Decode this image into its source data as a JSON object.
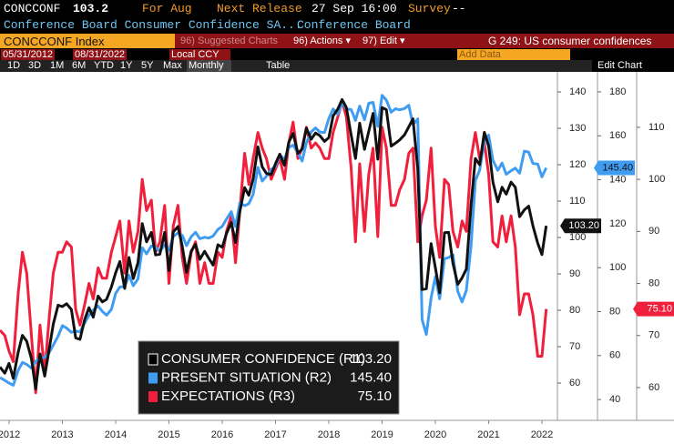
{
  "header": {
    "ticker": "CONCCONF",
    "last": "103.2",
    "period": "For Aug",
    "next_release_label": "Next Release",
    "next_release": "27 Sep 16:00",
    "survey_label": "Survey",
    "survey": "--",
    "description": "Conference Board Consumer Confidence SA...",
    "source": "Conference Board"
  },
  "toolbar": {
    "security": "CONCCONF Index",
    "suggested": "96) Suggested Charts",
    "actions": "96) Actions ▾",
    "edit": "97) Edit ▾",
    "chart_name": "G 249: US consumer confidences"
  },
  "controls": {
    "start": "05/31/2012",
    "end": "08/31/2022",
    "currency": "Local CCY",
    "add_data": "Add Data",
    "edit_chart": "Edit Chart",
    "ranges": [
      "1D",
      "3D",
      "1M",
      "6M",
      "YTD",
      "1Y",
      "5Y",
      "Max"
    ],
    "frequency": "Monthly",
    "table": "Table"
  },
  "chart_data": {
    "type": "line",
    "x": [
      2012.33,
      2012.42,
      2012.5,
      2012.58,
      2012.67,
      2012.75,
      2012.83,
      2012.92,
      2013,
      2013.08,
      2013.17,
      2013.25,
      2013.33,
      2013.42,
      2013.5,
      2013.58,
      2013.67,
      2013.75,
      2013.83,
      2013.92,
      2014,
      2014.08,
      2014.17,
      2014.25,
      2014.33,
      2014.42,
      2014.5,
      2014.58,
      2014.67,
      2014.75,
      2014.83,
      2014.92,
      2015,
      2015.08,
      2015.17,
      2015.25,
      2015.33,
      2015.42,
      2015.5,
      2015.58,
      2015.67,
      2015.75,
      2015.83,
      2015.92,
      2016,
      2016.08,
      2016.17,
      2016.25,
      2016.33,
      2016.42,
      2016.5,
      2016.58,
      2016.67,
      2016.75,
      2016.83,
      2016.92,
      2017,
      2017.08,
      2017.17,
      2017.25,
      2017.33,
      2017.42,
      2017.5,
      2017.58,
      2017.67,
      2017.75,
      2017.83,
      2017.92,
      2018,
      2018.08,
      2018.17,
      2018.25,
      2018.33,
      2018.42,
      2018.5,
      2018.58,
      2018.67,
      2018.75,
      2018.83,
      2018.92,
      2019,
      2019.08,
      2019.17,
      2019.25,
      2019.33,
      2019.42,
      2019.5,
      2019.58,
      2019.67,
      2019.75,
      2019.83,
      2019.92,
      2020,
      2020.08,
      2020.17,
      2020.25,
      2020.33,
      2020.42,
      2020.5,
      2020.58,
      2020.67,
      2020.75,
      2020.83,
      2020.92,
      2021,
      2021.08,
      2021.17,
      2021.25,
      2021.33,
      2021.42,
      2021.5,
      2021.58,
      2021.67,
      2021.75,
      2021.83,
      2021.92,
      2022,
      2022.08,
      2022.17,
      2022.25,
      2022.33,
      2022.42,
      2022.5,
      2022.58
    ],
    "xlim": [
      2012.33,
      2022.79
    ],
    "xticks": [
      {
        "value": 2012.5,
        "label": "2012"
      },
      {
        "value": 2013.5,
        "label": "2013"
      },
      {
        "value": 2014.5,
        "label": "2014"
      },
      {
        "value": 2015.5,
        "label": "2015"
      },
      {
        "value": 2016.5,
        "label": "2016"
      },
      {
        "value": 2017.5,
        "label": "2017"
      },
      {
        "value": 2018.5,
        "label": "2018"
      },
      {
        "value": 2019.5,
        "label": "2019"
      },
      {
        "value": 2020.5,
        "label": "2020"
      },
      {
        "value": 2021.5,
        "label": "2021"
      },
      {
        "value": 2022.5,
        "label": "2022"
      }
    ],
    "ylim": [
      50.25,
      144
    ],
    "yticks": [
      60,
      70,
      80,
      90,
      100,
      110,
      120,
      130,
      140
    ],
    "y2lim": [
      31.35,
      186.6
    ],
    "y2ticks": [
      40,
      60,
      80,
      100,
      120,
      140,
      160,
      180
    ],
    "y3lim": [
      54.05,
      119.6
    ],
    "y3ticks": [
      60,
      70,
      80,
      90,
      100,
      110
    ],
    "series": [
      {
        "name": "CONSUMER CONFIDENCE (R1)",
        "color": "#111111",
        "axis": "y",
        "last": {
          "value": 103.2,
          "label": "103.20"
        },
        "values": [
          64.4,
          62.7,
          65.4,
          61.3,
          68.4,
          73.1,
          71.5,
          66.7,
          58.4,
          68.0,
          61.9,
          69.0,
          76.2,
          81.4,
          81.0,
          81.8,
          80.2,
          72.4,
          72.0,
          77.5,
          80.7,
          78.1,
          83.9,
          82.3,
          83.0,
          86.4,
          90.3,
          93.4,
          86.0,
          94.5,
          88.7,
          93.1,
          103.8,
          98.8,
          101.4,
          95.2,
          95.4,
          101.4,
          90.9,
          101.5,
          103.0,
          97.6,
          90.4,
          96.3,
          98.1,
          94.0,
          96.2,
          94.2,
          92.4,
          98.0,
          97.3,
          101.1,
          104.1,
          98.6,
          107.1,
          113.7,
          111.6,
          116.1,
          124.9,
          119.4,
          117.6,
          117.3,
          120.3,
          122.9,
          119.8,
          126.2,
          128.6,
          123.1,
          124.3,
          130.0,
          127.0,
          128.7,
          128.0,
          126.4,
          127.4,
          133.4,
          135.3,
          137.9,
          135.7,
          128.1,
          121.7,
          131.4,
          124.2,
          129.2,
          134.1,
          121.5,
          135.7,
          135.1,
          125.1,
          125.9,
          126.8,
          128.2,
          130.4,
          132.6,
          118.8,
          85.7,
          85.9,
          98.3,
          91.7,
          84.8,
          101.3,
          101.4,
          92.9,
          87.1,
          88.9,
          91.3,
          109.0,
          121.7,
          120.0,
          128.9,
          125.1,
          115.2,
          109.8,
          113.8,
          111.9,
          115.2,
          113.8,
          105.7,
          107.6,
          108.6,
          103.2,
          98.4,
          95.3,
          103.2
        ]
      },
      {
        "name": "PRESENT SITUATION (R2)",
        "color": "#3f9cf0",
        "axis": "y2",
        "last": {
          "value": 145.4,
          "label": "145.40"
        },
        "values": [
          50.0,
          48.7,
          47.5,
          46.5,
          53.2,
          56.9,
          56.0,
          54.3,
          57.3,
          59.0,
          59.2,
          61.2,
          64.8,
          68.8,
          73.6,
          72.5,
          70.6,
          71.1,
          70.8,
          74.9,
          78.3,
          80.7,
          82.5,
          80.1,
          78.4,
          81.0,
          88.3,
          91.2,
          91.4,
          96.5,
          91.8,
          94.9,
          109.1,
          106.3,
          109.9,
          109.3,
          107.5,
          110.3,
          108.0,
          114.1,
          115.8,
          114.7,
          110.0,
          114.1,
          116.1,
          113.2,
          113.8,
          113.5,
          114.4,
          117.4,
          118.8,
          122.1,
          125.5,
          118.7,
          129.5,
          128.2,
          129.1,
          133.3,
          145.6,
          139.4,
          141.6,
          144.7,
          146.0,
          151.2,
          149.3,
          154.7,
          155.7,
          152.3,
          148.5,
          156.8,
          161.8,
          163.6,
          161.7,
          161.5,
          167.8,
          172.2,
          169.8,
          175.0,
          172.2,
          171.9,
          167.0,
          173.5,
          167.3,
          174.8,
          175.2,
          164.3,
          178.4,
          176.2,
          170.7,
          172.3,
          171.8,
          172.4,
          173.9,
          165.1,
          167.7,
          76.4,
          69.6,
          86.2,
          95.9,
          85.8,
          104.1,
          104.6,
          105.9,
          89.2,
          84.4,
          89.6,
          110.1,
          139.6,
          144.3,
          157.7,
          160.3,
          148.9,
          144.3,
          147.6,
          142.5,
          144.1,
          145.3,
          143.0,
          153.0,
          152.6,
          147.4,
          147.1,
          141.3,
          145.4
        ]
      },
      {
        "name": "EXPECTATIONS (R3)",
        "color": "#f0203c",
        "axis": "y3",
        "last": {
          "value": 75.1,
          "label": "75.10"
        },
        "values": [
          71,
          70,
          67,
          65,
          78,
          86,
          82,
          70,
          59,
          72,
          63,
          73,
          82,
          86,
          86,
          88,
          87,
          75,
          72,
          76,
          80,
          77,
          83,
          81,
          81,
          86,
          89,
          92,
          82,
          92,
          86,
          90,
          100,
          94,
          96,
          86,
          88,
          95,
          80,
          91,
          95,
          85,
          80,
          86,
          88,
          80,
          84,
          80,
          80,
          86,
          85,
          90,
          93,
          84,
          94,
          105,
          99,
          104,
          109,
          106,
          104,
          100,
          102,
          104,
          100,
          107,
          111,
          104,
          106,
          110,
          106,
          107,
          106,
          104,
          104,
          109,
          112,
          115,
          112,
          102,
          88,
          103,
          90,
          101,
          106,
          89,
          110,
          106,
          95,
          95,
          98,
          100,
          105,
          106,
          88,
          93,
          96,
          106,
          91,
          85,
          100,
          99,
          90,
          87,
          92,
          90,
          104,
          109,
          104,
          107,
          101,
          88,
          87,
          93,
          88,
          93,
          87,
          74,
          78,
          78,
          74,
          66,
          66,
          75.1
        ]
      }
    ]
  }
}
